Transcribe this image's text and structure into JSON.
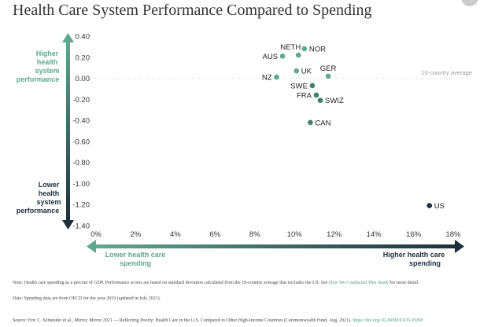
{
  "title": "Health Care System Performance Compared to Spending",
  "chart_data": {
    "type": "scatter",
    "title": "Health Care System Performance Compared to Spending",
    "xlim": [
      0,
      18
    ],
    "ylim": [
      -1.4,
      0.4
    ],
    "x_ticks": [
      "0%",
      "2%",
      "4%",
      "6%",
      "8%",
      "10%",
      "12%",
      "14%",
      "16%",
      "18%"
    ],
    "y_ticks": [
      "0.40",
      "0.20",
      "0.00",
      "-0.20",
      "-0.40",
      "-0.60",
      "-0.80",
      "-1.00",
      "-1.20",
      "-1.40"
    ],
    "y_axis_top_label": "Higher health system performance",
    "y_axis_bottom_label": "Lower health system performance",
    "x_axis_left_label": "Lower health care spending",
    "x_axis_right_label": "Higher health care spending",
    "reference_line": {
      "y": 0,
      "label": "10-country average"
    },
    "points": [
      {
        "label": "AUS",
        "x": 9.4,
        "y": 0.21
      },
      {
        "label": "NETH",
        "x": 10.2,
        "y": 0.22
      },
      {
        "label": "NOR",
        "x": 10.5,
        "y": 0.28
      },
      {
        "label": "UK",
        "x": 10.1,
        "y": 0.07
      },
      {
        "label": "GER",
        "x": 11.7,
        "y": 0.02
      },
      {
        "label": "NZ",
        "x": 9.1,
        "y": 0.01
      },
      {
        "label": "SWE",
        "x": 10.9,
        "y": -0.07
      },
      {
        "label": "FRA",
        "x": 11.1,
        "y": -0.16
      },
      {
        "label": "SWIZ",
        "x": 11.3,
        "y": -0.21
      },
      {
        "label": "CAN",
        "x": 10.8,
        "y": -0.42
      },
      {
        "label": "US",
        "x": 16.8,
        "y": -1.21
      }
    ],
    "colors": {
      "above": "#5fa88e",
      "below": "#3f8069",
      "us": "#1e2e3c",
      "axis_top": "#5fa88e",
      "axis_bottom": "#1e2e3c"
    }
  },
  "notes": {
    "note": "Note: Health care spending as a percent of GDP. Performance scores are based on standard deviation calculated from the 10-country average that excludes the US. See ",
    "note_link": "How We Conducted This Study",
    "note_end": " for more detail.",
    "data": "Data: Spending data are from OECD for the year 2019 (updated in July 2021).",
    "source": "Source: Eric C. Schneider et al., Mirror, Mirror 2021 — Reflecting Poorly: Health Care in the U.S. Compared to Other High-Income Countries (Commonwealth Fund, Aug. 2021).",
    "source_link": "https://doi.org/10.26099/01DV-H208"
  }
}
